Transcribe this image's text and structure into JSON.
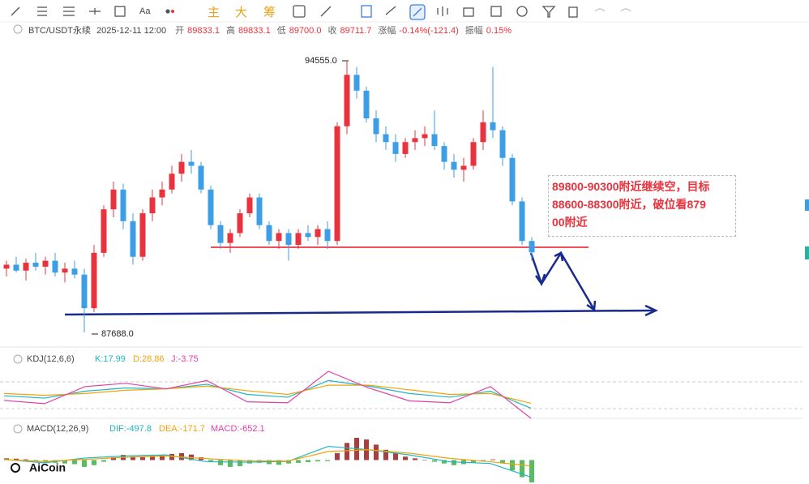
{
  "toolbar": {
    "labels": [
      "Aa",
      "主",
      "大",
      "筹"
    ]
  },
  "header": {
    "symbol": "BTC/USDT永续",
    "time": "2025-12-11 12:00",
    "fields": [
      {
        "label": "开",
        "value": "89833.1"
      },
      {
        "label": "高",
        "value": "89833.1"
      },
      {
        "label": "低",
        "value": "89700.0"
      },
      {
        "label": "收",
        "value": "89711.7"
      },
      {
        "label": "涨幅",
        "value": "-0.14%(-121.4)"
      },
      {
        "label": "振幅",
        "value": "0.15%"
      }
    ]
  },
  "chart": {
    "type": "candlestick",
    "up_color": "#e8333e",
    "down_color": "#3c9fe6",
    "candles": [
      [
        89300,
        89500,
        89100,
        89400
      ],
      [
        89400,
        89600,
        89200,
        89250
      ],
      [
        89250,
        89550,
        89000,
        89450
      ],
      [
        89450,
        89700,
        89250,
        89350
      ],
      [
        89350,
        89600,
        89150,
        89500
      ],
      [
        89500,
        89700,
        89100,
        89200
      ],
      [
        89200,
        89450,
        88950,
        89300
      ],
      [
        89300,
        89500,
        89050,
        89150
      ],
      [
        89150,
        89300,
        87688,
        88300
      ],
      [
        88300,
        89900,
        88200,
        89700
      ],
      [
        89700,
        90900,
        89600,
        90800
      ],
      [
        90800,
        91500,
        90600,
        91300
      ],
      [
        91300,
        91450,
        90300,
        90500
      ],
      [
        90500,
        90700,
        89400,
        89600
      ],
      [
        89600,
        90800,
        89500,
        90700
      ],
      [
        90700,
        91300,
        90500,
        91100
      ],
      [
        91100,
        91500,
        90900,
        91300
      ],
      [
        91300,
        91900,
        91200,
        91700
      ],
      [
        91700,
        92200,
        91500,
        92000
      ],
      [
        92000,
        92300,
        91700,
        91900
      ],
      [
        91900,
        92000,
        91200,
        91300
      ],
      [
        91300,
        91400,
        90300,
        90400
      ],
      [
        90400,
        90500,
        89800,
        89950
      ],
      [
        89950,
        90300,
        89700,
        90200
      ],
      [
        90200,
        90800,
        90100,
        90700
      ],
      [
        90700,
        91200,
        90600,
        91100
      ],
      [
        91100,
        91200,
        90300,
        90400
      ],
      [
        90400,
        90500,
        89900,
        90000
      ],
      [
        90000,
        90300,
        89800,
        90200
      ],
      [
        90200,
        90300,
        89500,
        89900
      ],
      [
        89900,
        90300,
        89800,
        90200
      ],
      [
        90200,
        90400,
        90000,
        90100
      ],
      [
        90100,
        90400,
        89900,
        90300
      ],
      [
        90300,
        90500,
        89800,
        90000
      ],
      [
        90000,
        93000,
        89900,
        92900
      ],
      [
        92900,
        94555,
        92700,
        94200
      ],
      [
        94200,
        94400,
        93600,
        93800
      ],
      [
        93800,
        93900,
        93000,
        93100
      ],
      [
        93100,
        93300,
        92500,
        92700
      ],
      [
        92700,
        92900,
        92300,
        92500
      ],
      [
        92500,
        92700,
        92000,
        92200
      ],
      [
        92200,
        92600,
        92100,
        92500
      ],
      [
        92500,
        92800,
        92300,
        92600
      ],
      [
        92600,
        92900,
        92400,
        92700
      ],
      [
        92700,
        93300,
        92300,
        92400
      ],
      [
        92400,
        92500,
        91800,
        92000
      ],
      [
        92000,
        92200,
        91600,
        91800
      ],
      [
        91800,
        92100,
        91500,
        91900
      ],
      [
        91900,
        92600,
        91800,
        92500
      ],
      [
        92500,
        93300,
        92300,
        93000
      ],
      [
        93000,
        94400,
        92600,
        92800
      ],
      [
        92800,
        92900,
        91900,
        92100
      ],
      [
        92100,
        92200,
        90900,
        91000
      ],
      [
        91000,
        91100,
        89900,
        90000
      ],
      [
        90000,
        90100,
        89500,
        89711.7
      ]
    ],
    "high_label": "94555.0",
    "low_label": "87688.0",
    "annotation": [
      "89800-90300附近继续空，目标",
      "88600-88300附近，破位看879",
      "00附近"
    ]
  },
  "kdj": {
    "title": "KDJ(12,6,6)",
    "legend": [
      "K:17.99",
      "D:28.86",
      "J:-3.75"
    ],
    "series": [
      {
        "name": "K",
        "color": "#1fb5c4",
        "values": [
          45,
          40,
          55,
          62,
          60,
          70,
          48,
          42,
          78,
          66,
          50,
          42,
          55,
          17.99
        ]
      },
      {
        "name": "D",
        "color": "#f0a30a",
        "values": [
          50,
          46,
          50,
          57,
          60,
          66,
          56,
          48,
          68,
          68,
          58,
          48,
          50,
          28.86
        ]
      },
      {
        "name": "J",
        "color": "#e040a8",
        "values": [
          35,
          28,
          65,
          72,
          60,
          78,
          32,
          30,
          98,
          62,
          34,
          30,
          65,
          -3.75
        ]
      }
    ]
  },
  "macd": {
    "title": "MACD(12,26,9)",
    "legend": [
      "DIF:-497.8",
      "DEA:-171.7",
      "MACD:-652.1"
    ],
    "histogram": [
      50,
      40,
      20,
      -30,
      -60,
      -80,
      -100,
      -120,
      -200,
      -150,
      -50,
      80,
      150,
      100,
      80,
      120,
      150,
      180,
      200,
      160,
      80,
      -50,
      -150,
      -200,
      -180,
      -100,
      -80,
      -120,
      -140,
      -100,
      -80,
      -60,
      -40,
      -30,
      200,
      500,
      650,
      600,
      450,
      300,
      200,
      100,
      50,
      0,
      -50,
      -100,
      -150,
      -120,
      -80,
      -40,
      20,
      -100,
      -300,
      -500,
      -652.1
    ],
    "series": [
      {
        "name": "DIF",
        "color": "#1fb5c4",
        "values": [
          20,
          -80,
          60,
          120,
          150,
          -50,
          -60,
          -40,
          400,
          300,
          150,
          -50,
          -100,
          -497.8
        ]
      },
      {
        "name": "DEA",
        "color": "#f0a30a",
        "values": [
          10,
          -40,
          20,
          80,
          120,
          40,
          -20,
          -30,
          250,
          300,
          200,
          50,
          -50,
          -171.7
        ]
      }
    ]
  },
  "logo": "AiCoin"
}
